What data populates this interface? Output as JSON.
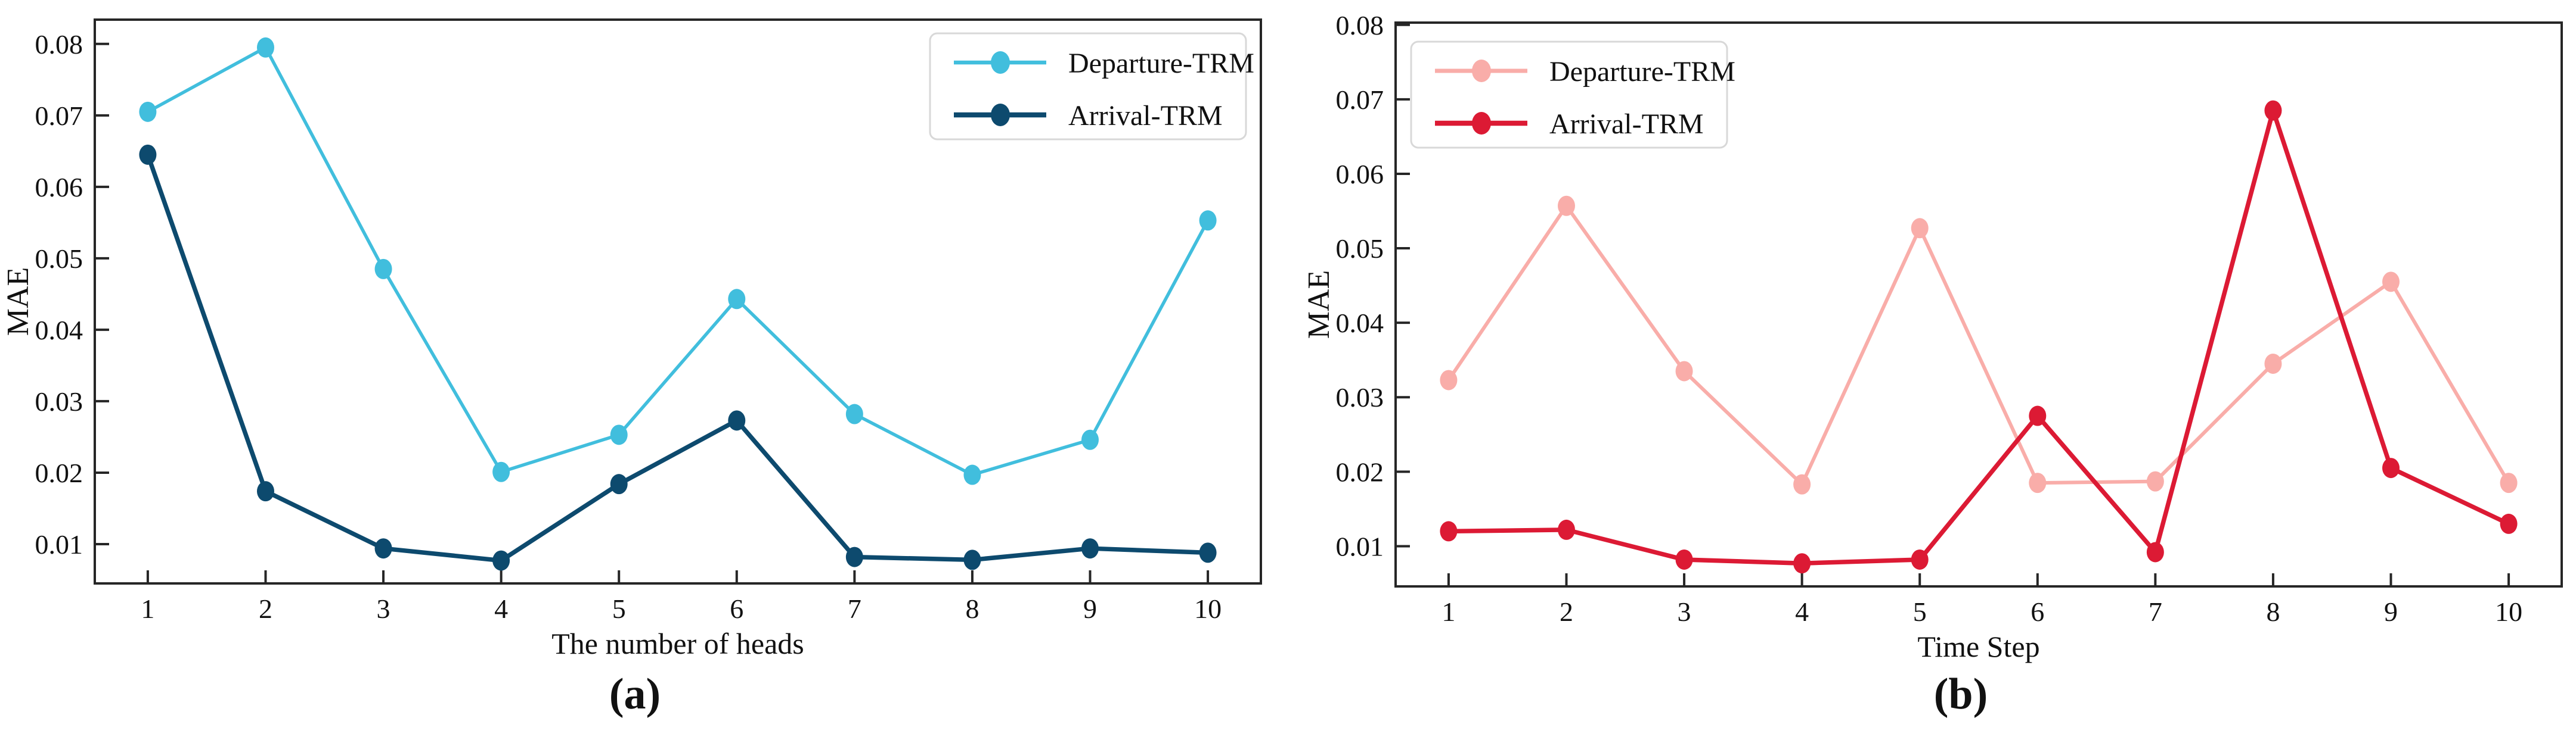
{
  "figure": {
    "description": "Two side-by-side line charts comparing MAE of Departure-TRM and Arrival-TRM models",
    "colors": {
      "spine": "#262626",
      "legend_border": "#d8d8d8",
      "legend_fill": "#ffffff",
      "text": "#111111"
    }
  },
  "chart_data": [
    {
      "type": "line",
      "caption": "(a)",
      "xlabel": "The number of heads",
      "ylabel": "MAE",
      "x": [
        1,
        2,
        3,
        4,
        5,
        6,
        7,
        8,
        9,
        10
      ],
      "xticks": [
        1,
        2,
        3,
        4,
        5,
        6,
        7,
        8,
        9,
        10
      ],
      "yticks": [
        0.01,
        0.02,
        0.03,
        0.04,
        0.05,
        0.06,
        0.07,
        0.08
      ],
      "xlim": [
        0.55,
        10.45
      ],
      "ylim": [
        0.0045,
        0.0834
      ],
      "grid": false,
      "legend_position": "top-right",
      "series": [
        {
          "name": "Departure-TRM",
          "color": "#41bedd",
          "line_width": 5.5,
          "values": [
            0.0705,
            0.0795,
            0.0485,
            0.0201,
            0.0253,
            0.0443,
            0.0282,
            0.0197,
            0.0246,
            0.0553
          ]
        },
        {
          "name": "Arrival-TRM",
          "color": "#0d4a6e",
          "line_width": 7.5,
          "values": [
            0.0645,
            0.0174,
            0.0094,
            0.0077,
            0.0184,
            0.0273,
            0.0082,
            0.0078,
            0.0094,
            0.0088
          ]
        }
      ]
    },
    {
      "type": "line",
      "caption": "(b)",
      "xlabel": "Time Step",
      "ylabel": "MAE",
      "x": [
        1,
        2,
        3,
        4,
        5,
        6,
        7,
        8,
        9,
        10
      ],
      "xticks": [
        1,
        2,
        3,
        4,
        5,
        6,
        7,
        8,
        9,
        10
      ],
      "yticks": [
        0.01,
        0.02,
        0.03,
        0.04,
        0.05,
        0.06,
        0.07,
        0.08
      ],
      "xlim": [
        0.55,
        10.45
      ],
      "ylim": [
        0.0046,
        0.0803
      ],
      "grid": false,
      "legend_position": "top-left",
      "series": [
        {
          "name": "Departure-TRM",
          "color": "#f9ada9",
          "line_width": 6,
          "values": [
            0.0323,
            0.0557,
            0.0335,
            0.0183,
            0.0527,
            0.0185,
            0.0187,
            0.0345,
            0.0455,
            0.0185
          ]
        },
        {
          "name": "Arrival-TRM",
          "color": "#dc1a34",
          "line_width": 7.5,
          "values": [
            0.012,
            0.0122,
            0.0082,
            0.0077,
            0.0082,
            0.0275,
            0.0092,
            0.0685,
            0.0205,
            0.013
          ]
        }
      ]
    }
  ]
}
